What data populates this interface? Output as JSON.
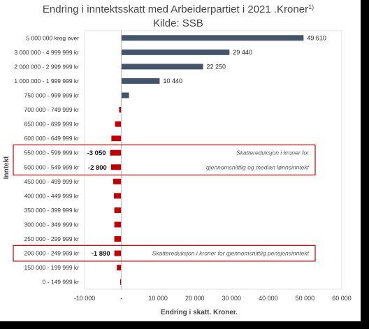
{
  "chart_data": {
    "type": "bar",
    "orientation": "horizontal",
    "title_line1": "Endring i inntektsskatt med Arbeiderpartiet i 2021 .Kroner",
    "title_sup": "1)",
    "title_line2": "Kilde: SSB",
    "xlabel": "Endring i skatt. Kroner.",
    "ylabel": "Inntekt",
    "xlim": [
      -10000,
      60000
    ],
    "xticks": [
      "-10 000",
      "-",
      "10 000",
      "20 000",
      "30 000",
      "40 000",
      "50 000",
      "60 000"
    ],
    "categories": [
      "5 000 000 krog over",
      "3 000 000 - 4 999 999 kr",
      "2 000 000 - 2 999 999 kr",
      "1 000 000 - 1 999 999 kr",
      "750 000 - 999 999 kr",
      "700 000 - 749 999 kr",
      "650 000 - 699 999 kr",
      "600 000 - 649 999 kr",
      "550 000 - 599 999 kr",
      "500 000 - 549 999 kr",
      "450 000 - 499 999 kr",
      "400 000 - 449 999 kr",
      "350 000 - 399 999 kr",
      "300 000 - 349 999 kr",
      "250 000 - 299 999 kr",
      "200 000 - 249 999 kr",
      "150 000 - 199 999 kr",
      "0 - 149 999 kr"
    ],
    "values": [
      49610,
      29440,
      22250,
      10440,
      2100,
      -600,
      -1700,
      -2700,
      -3050,
      -2800,
      -2200,
      -2000,
      -1900,
      -1900,
      -1900,
      -1890,
      -1200,
      -300
    ],
    "data_labels": [
      "49 610",
      "29 440",
      "22 250",
      "10 440",
      "",
      "",
      "",
      "",
      "-3 050",
      "-2 800",
      "",
      "",
      "",
      "",
      "",
      "-1 890",
      "",
      ""
    ],
    "colors": {
      "positive": "#44546a",
      "negative": "#c00000",
      "box": "#c00000"
    },
    "annotations": [
      {
        "text_line1": "Skattereduksjon i kroner for",
        "text_line2": "gjennomsnittlig og median lønnsinntekt"
      },
      {
        "text_line1": "Skattereduksjon i kroner for gjennomsnittlig pensjonsinntekt"
      }
    ]
  }
}
